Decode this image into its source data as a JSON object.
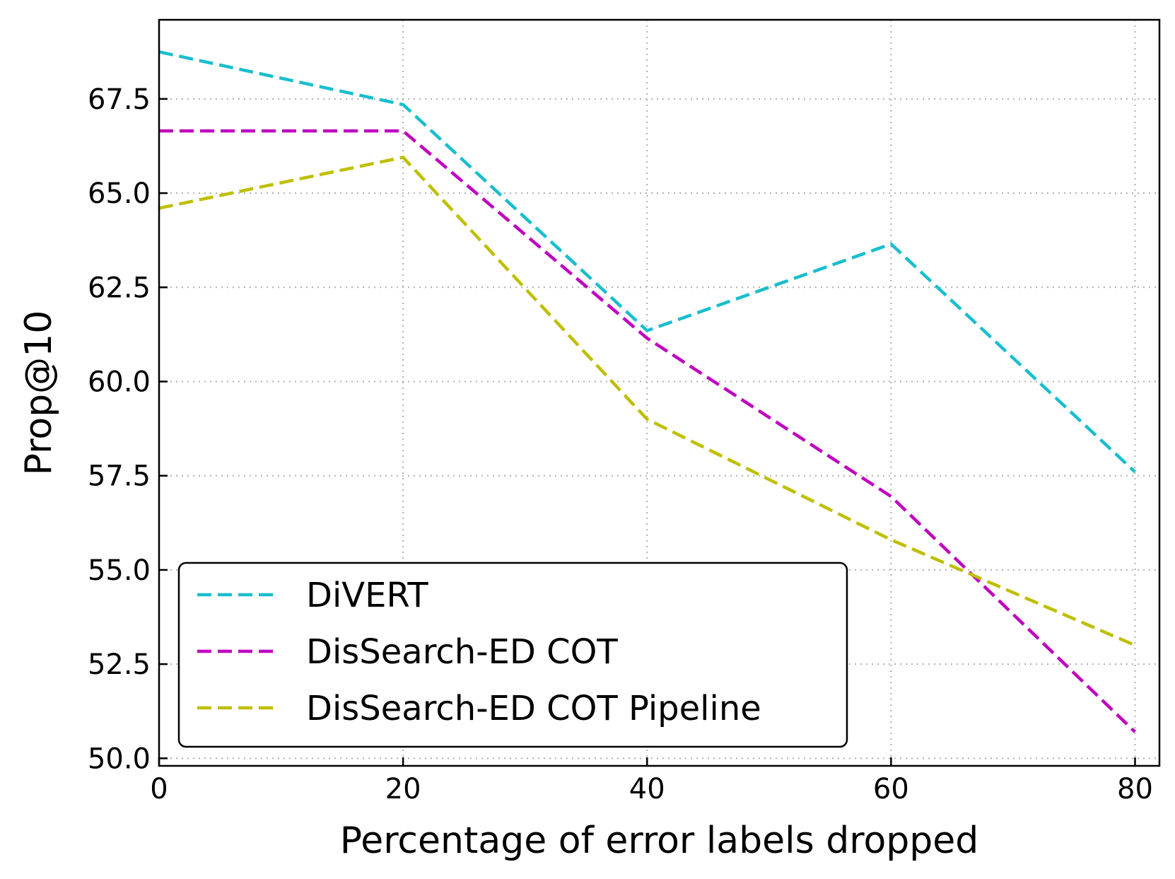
{
  "chart_data": {
    "type": "line",
    "xlabel": "Percentage of error labels dropped",
    "ylabel": "Prop@10",
    "x": [
      0,
      20,
      40,
      60,
      80
    ],
    "xlim": [
      0,
      82
    ],
    "ylim": [
      49.8,
      69.6
    ],
    "xticks": [
      0,
      20,
      40,
      60,
      80
    ],
    "xtick_labels": [
      "0",
      "20",
      "40",
      "60",
      "80"
    ],
    "yticks": [
      50.0,
      52.5,
      55.0,
      57.5,
      60.0,
      62.5,
      65.0,
      67.5
    ],
    "ytick_labels": [
      "50.0",
      "52.5",
      "55.0",
      "57.5",
      "60.0",
      "62.5",
      "65.0",
      "67.5"
    ],
    "grid": true,
    "legend_position": "lower-left",
    "series": [
      {
        "name": "DiVERT",
        "color": "#17becf",
        "values": [
          68.75,
          67.35,
          61.35,
          63.65,
          57.6
        ]
      },
      {
        "name": "DisSearch-ED COT",
        "color": "#bf00bf",
        "values": [
          66.65,
          66.65,
          61.15,
          56.95,
          50.7
        ]
      },
      {
        "name": "DisSearch-ED COT Pipeline",
        "color": "#bfbf00",
        "values": [
          64.6,
          65.95,
          59.0,
          55.8,
          53.0
        ]
      }
    ]
  }
}
